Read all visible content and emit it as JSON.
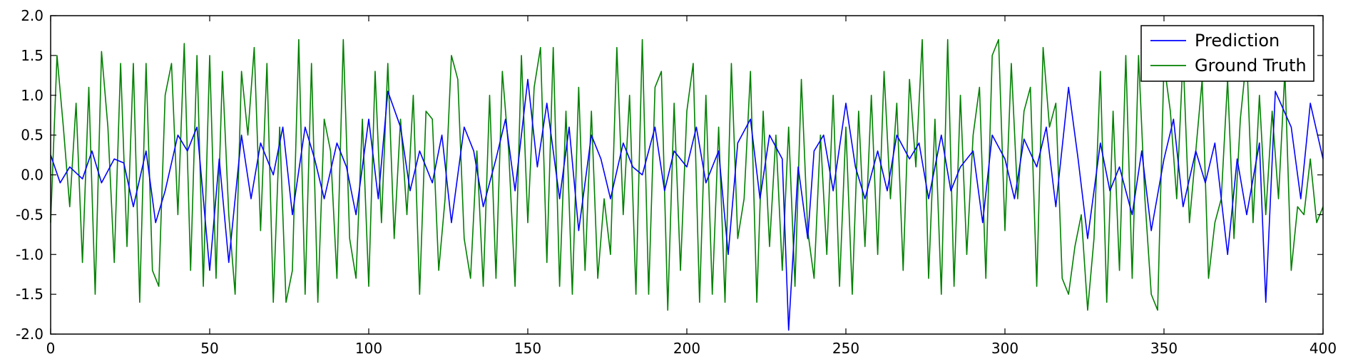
{
  "chart_data": {
    "type": "line",
    "title": "",
    "xlabel": "",
    "ylabel": "",
    "xlim": [
      0,
      400
    ],
    "ylim": [
      -2.0,
      2.0
    ],
    "x_ticks": [
      "0",
      "50",
      "100",
      "150",
      "200",
      "250",
      "300",
      "350",
      "400"
    ],
    "y_ticks": [
      "2.0",
      "1.5",
      "1.0",
      "0.5",
      "0.0",
      "-0.5",
      "-1.0",
      "-1.5",
      "-2.0"
    ],
    "grid": false,
    "legend": {
      "position": "top-right",
      "entries": [
        {
          "label": "Prediction",
          "color": "#0000ff"
        },
        {
          "label": "Ground Truth",
          "color": "#008000"
        }
      ]
    },
    "series": [
      {
        "name": "Prediction",
        "color": "#0000ff",
        "x": [
          0,
          3,
          6,
          10,
          13,
          16,
          20,
          23,
          26,
          30,
          33,
          36,
          40,
          43,
          46,
          50,
          53,
          56,
          60,
          63,
          66,
          70,
          73,
          76,
          80,
          83,
          86,
          90,
          93,
          96,
          100,
          103,
          106,
          110,
          113,
          116,
          120,
          123,
          126,
          130,
          133,
          136,
          140,
          143,
          146,
          150,
          153,
          156,
          160,
          163,
          166,
          170,
          173,
          176,
          180,
          183,
          186,
          190,
          193,
          196,
          200,
          203,
          206,
          210,
          213,
          216,
          220,
          223,
          226,
          230,
          232,
          235,
          238,
          240,
          243,
          246,
          250,
          253,
          256,
          260,
          263,
          266,
          270,
          273,
          276,
          280,
          283,
          286,
          290,
          293,
          296,
          300,
          303,
          306,
          310,
          313,
          316,
          320,
          323,
          326,
          330,
          333,
          336,
          340,
          343,
          346,
          350,
          353,
          356,
          360,
          363,
          366,
          370,
          373,
          376,
          380,
          382,
          385,
          390,
          393,
          396,
          400
        ],
        "y": [
          0.25,
          -0.1,
          0.1,
          -0.05,
          0.3,
          -0.1,
          0.2,
          0.15,
          -0.4,
          0.3,
          -0.6,
          -0.2,
          0.5,
          0.3,
          0.6,
          -1.2,
          0.2,
          -1.1,
          0.5,
          -0.3,
          0.4,
          0.0,
          0.6,
          -0.5,
          0.6,
          0.2,
          -0.3,
          0.4,
          0.1,
          -0.5,
          0.7,
          -0.3,
          1.05,
          0.6,
          -0.2,
          0.3,
          -0.1,
          0.5,
          -0.6,
          0.6,
          0.3,
          -0.4,
          0.2,
          0.7,
          -0.2,
          1.2,
          0.1,
          0.9,
          -0.3,
          0.6,
          -0.7,
          0.5,
          0.2,
          -0.3,
          0.4,
          0.1,
          0.0,
          0.6,
          -0.2,
          0.3,
          0.1,
          0.6,
          -0.1,
          0.3,
          -1.0,
          0.4,
          0.7,
          -0.3,
          0.5,
          0.2,
          -1.95,
          0.1,
          -0.8,
          0.3,
          0.5,
          -0.2,
          0.9,
          0.1,
          -0.3,
          0.3,
          -0.2,
          0.5,
          0.2,
          0.4,
          -0.3,
          0.5,
          -0.2,
          0.1,
          0.3,
          -0.6,
          0.5,
          0.2,
          -0.3,
          0.45,
          0.1,
          0.6,
          -0.4,
          1.1,
          0.2,
          -0.8,
          0.4,
          -0.2,
          0.1,
          -0.5,
          0.3,
          -0.7,
          0.2,
          0.7,
          -0.4,
          0.3,
          -0.1,
          0.4,
          -1.0,
          0.2,
          -0.5,
          0.4,
          -1.6,
          1.05,
          0.6,
          -0.3,
          0.9,
          0.2
        ]
      },
      {
        "name": "Ground Truth",
        "color": "#008000",
        "x": [
          0,
          2,
          4,
          6,
          8,
          10,
          12,
          14,
          16,
          18,
          20,
          22,
          24,
          26,
          28,
          30,
          32,
          34,
          36,
          38,
          40,
          42,
          44,
          46,
          48,
          50,
          52,
          54,
          56,
          58,
          60,
          62,
          64,
          66,
          68,
          70,
          72,
          74,
          76,
          78,
          80,
          82,
          84,
          86,
          88,
          90,
          92,
          94,
          96,
          98,
          100,
          102,
          104,
          106,
          108,
          110,
          112,
          114,
          116,
          118,
          120,
          122,
          124,
          126,
          128,
          130,
          132,
          134,
          136,
          138,
          140,
          142,
          144,
          146,
          148,
          150,
          152,
          154,
          156,
          158,
          160,
          162,
          164,
          166,
          168,
          170,
          172,
          174,
          176,
          178,
          180,
          182,
          184,
          186,
          188,
          190,
          192,
          194,
          196,
          198,
          200,
          202,
          204,
          206,
          208,
          210,
          212,
          214,
          216,
          218,
          220,
          222,
          224,
          226,
          228,
          230,
          232,
          234,
          236,
          238,
          240,
          242,
          244,
          246,
          248,
          250,
          252,
          254,
          256,
          258,
          260,
          262,
          264,
          266,
          268,
          270,
          272,
          274,
          276,
          278,
          280,
          282,
          284,
          286,
          288,
          290,
          292,
          294,
          296,
          298,
          300,
          302,
          304,
          306,
          308,
          310,
          312,
          314,
          316,
          318,
          320,
          322,
          324,
          326,
          328,
          330,
          332,
          334,
          336,
          338,
          340,
          342,
          344,
          346,
          348,
          350,
          352,
          354,
          356,
          358,
          360,
          362,
          364,
          366,
          368,
          370,
          372,
          374,
          376,
          378,
          380,
          382,
          384,
          386,
          388,
          390,
          392,
          394,
          396,
          398,
          400
        ],
        "y": [
          -0.6,
          1.5,
          0.6,
          -0.4,
          0.9,
          -1.1,
          1.1,
          -1.5,
          1.55,
          0.6,
          -1.1,
          1.4,
          -0.9,
          1.4,
          -1.6,
          1.4,
          -1.2,
          -1.4,
          1.0,
          1.4,
          -0.5,
          1.65,
          -1.2,
          1.5,
          -1.4,
          1.5,
          -1.3,
          1.3,
          -0.5,
          -1.5,
          1.3,
          0.5,
          1.6,
          -0.7,
          1.4,
          -1.6,
          0.6,
          -1.6,
          -1.2,
          1.7,
          -1.5,
          1.4,
          -1.6,
          0.7,
          0.3,
          -1.3,
          1.7,
          -0.8,
          -1.3,
          0.7,
          -1.4,
          1.3,
          -0.6,
          1.4,
          -0.8,
          0.7,
          -0.5,
          1.0,
          -1.5,
          0.8,
          0.7,
          -1.2,
          -0.3,
          1.5,
          1.2,
          -0.8,
          -1.3,
          0.3,
          -1.4,
          1.0,
          -1.3,
          1.3,
          0.3,
          -1.4,
          1.5,
          -0.6,
          1.1,
          1.6,
          -1.1,
          1.6,
          -1.4,
          0.8,
          -1.5,
          1.1,
          -1.2,
          0.8,
          -1.3,
          -0.3,
          -1.0,
          1.6,
          -0.5,
          1.0,
          -1.5,
          1.7,
          -1.5,
          1.1,
          1.3,
          -1.7,
          0.9,
          -1.2,
          0.8,
          1.4,
          -1.6,
          1.0,
          -1.5,
          0.6,
          -1.6,
          1.4,
          -0.8,
          -0.3,
          1.3,
          -1.6,
          0.8,
          -0.9,
          0.5,
          -1.2,
          0.6,
          -1.4,
          1.2,
          -0.7,
          -1.3,
          0.5,
          -1.0,
          1.0,
          -1.4,
          0.6,
          -1.5,
          0.8,
          -0.9,
          1.0,
          -1.0,
          1.3,
          -0.3,
          0.9,
          -1.2,
          1.2,
          0.1,
          1.7,
          -1.3,
          0.7,
          -1.5,
          1.7,
          -1.4,
          1.0,
          -1.0,
          0.5,
          1.1,
          -1.3,
          1.5,
          1.7,
          -0.7,
          1.4,
          -0.3,
          0.8,
          1.1,
          -1.4,
          1.6,
          0.6,
          0.9,
          -1.3,
          -1.5,
          -0.9,
          -0.5,
          -1.7,
          -0.8,
          1.3,
          -1.6,
          0.8,
          -1.2,
          1.5,
          -1.3,
          1.5,
          -0.3,
          -1.5,
          -1.7,
          1.4,
          0.8,
          -0.3,
          1.5,
          -0.6,
          0.3,
          1.2,
          -1.3,
          -0.6,
          -0.3,
          1.2,
          -0.8,
          0.7,
          1.5,
          -0.6,
          1.0,
          -0.5,
          0.8,
          -0.3,
          1.3,
          -1.2,
          -0.4,
          -0.5,
          0.2,
          -0.6,
          -0.4
        ]
      }
    ]
  }
}
